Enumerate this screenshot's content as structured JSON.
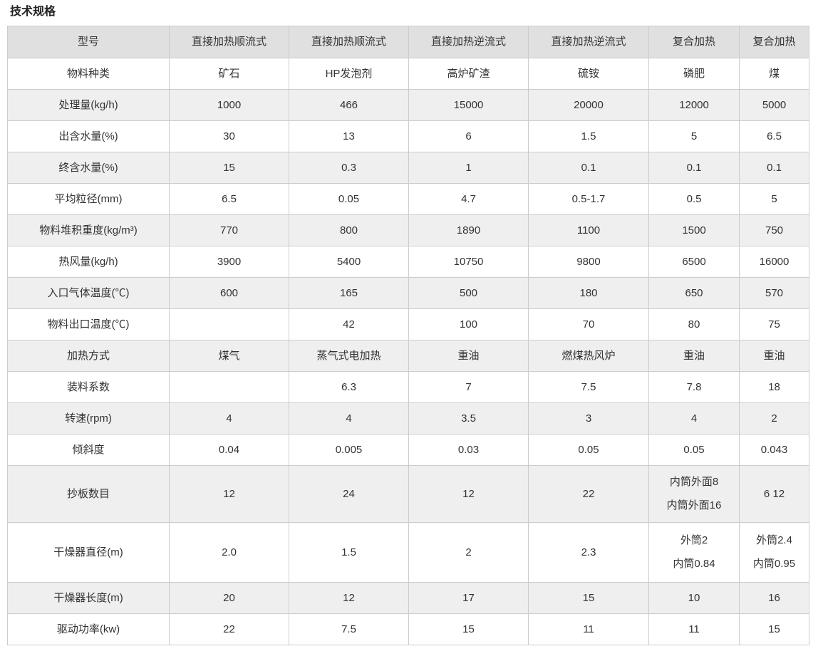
{
  "page": {
    "title": "技术规格"
  },
  "table": {
    "columns": [
      "型号",
      "直接加热顺流式",
      "直接加热顺流式",
      "直接加热逆流式",
      "直接加热逆流式",
      "复合加热",
      "复合加热"
    ],
    "rows": [
      {
        "label": "物料种类",
        "values": [
          "矿石",
          "HP发泡剂",
          "高炉矿渣",
          "硫铵",
          "磷肥",
          "煤"
        ]
      },
      {
        "label": "处理量(kg/h)",
        "values": [
          "1000",
          "466",
          "15000",
          "20000",
          "12000",
          "5000"
        ]
      },
      {
        "label": "出含水量(%)",
        "values": [
          "30",
          "13",
          "6",
          "1.5",
          "5",
          "6.5"
        ]
      },
      {
        "label": "终含水量(%)",
        "values": [
          "15",
          "0.3",
          "1",
          "0.1",
          "0.1",
          "0.1"
        ]
      },
      {
        "label": "平均粒径(mm)",
        "values": [
          "6.5",
          "0.05",
          "4.7",
          "0.5-1.7",
          "0.5",
          "5"
        ]
      },
      {
        "label": "物料堆积重度(kg/m³)",
        "values": [
          "770",
          "800",
          "1890",
          "1100",
          "1500",
          "750"
        ]
      },
      {
        "label": "热风量(kg/h)",
        "values": [
          "3900",
          "5400",
          "10750",
          "9800",
          "6500",
          "16000"
        ]
      },
      {
        "label": "入口气体温度(℃)",
        "values": [
          "600",
          "165",
          "500",
          "180",
          "650",
          "570"
        ]
      },
      {
        "label": "物料出口温度(℃)",
        "values": [
          "",
          "42",
          "100",
          "70",
          "80",
          "75"
        ]
      },
      {
        "label": "加热方式",
        "values": [
          "煤气",
          "蒸气式电加热",
          "重油",
          "燃煤热风炉",
          "重油",
          "重油"
        ]
      },
      {
        "label": "装料系数",
        "values": [
          "",
          "6.3",
          "7",
          "7.5",
          "7.8",
          "18"
        ]
      },
      {
        "label": "转速(rpm)",
        "values": [
          "4",
          "4",
          "3.5",
          "3",
          "4",
          "2"
        ]
      },
      {
        "label": "倾斜度",
        "values": [
          "0.04",
          "0.005",
          "0.03",
          "0.05",
          "0.05",
          "0.043"
        ]
      },
      {
        "label": "抄板数目",
        "values": [
          "12",
          "24",
          "12",
          "22",
          "内筒外面8\n内筒外面16",
          "6 12"
        ]
      },
      {
        "label": "干燥器直径(m)",
        "values": [
          "2.0",
          "1.5",
          "2",
          "2.3",
          "外筒2\n内筒0.84",
          "外筒2.4\n内筒0.95"
        ]
      },
      {
        "label": "干燥器长度(m)",
        "values": [
          "20",
          "12",
          "17",
          "15",
          "10",
          "16"
        ]
      },
      {
        "label": "驱动功率(kw)",
        "values": [
          "22",
          "7.5",
          "15",
          "11",
          "11",
          "15"
        ]
      }
    ]
  },
  "colors": {
    "header_bg": "#e0e0e0",
    "stripe_bg": "#efefef",
    "border": "#cccccc",
    "text": "#333333"
  }
}
